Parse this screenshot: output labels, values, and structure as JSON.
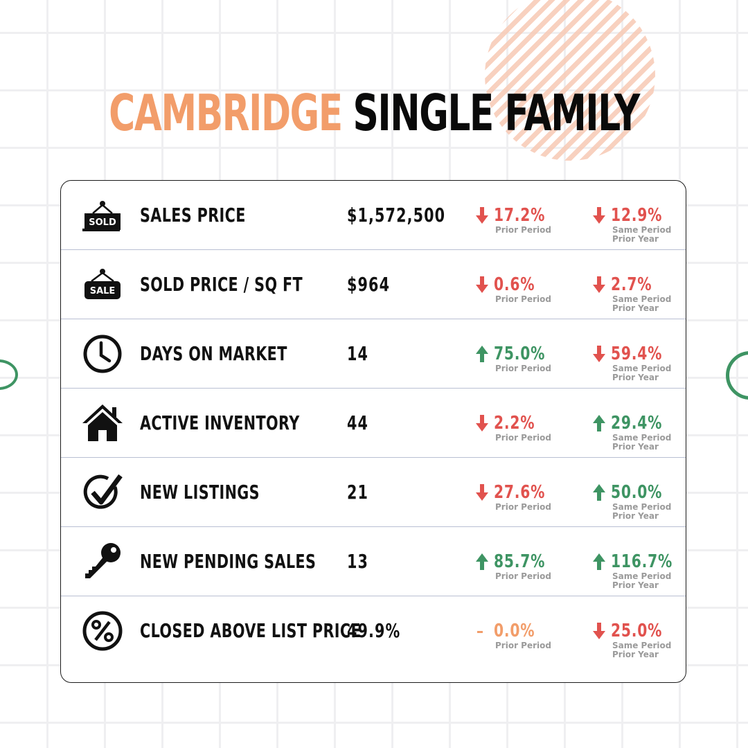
{
  "title": {
    "city": "CAMBRIDGE",
    "type": "SINGLE FAMILY"
  },
  "colors": {
    "accent": "#f29d6a",
    "down": "#e1524e",
    "up": "#3e9463",
    "flat": "#f29d6a"
  },
  "column_labels": {
    "prior_period": "Prior Period",
    "same_period_line1": "Same Period",
    "same_period_line2": "Prior Year"
  },
  "rows": [
    {
      "icon": "sold-sign-icon",
      "label": "SALES PRICE",
      "value": "$1,572,500",
      "prior": {
        "dir": "down",
        "pct": "17.2%"
      },
      "year": {
        "dir": "down",
        "pct": "12.9%"
      }
    },
    {
      "icon": "sale-sign-icon",
      "label": "SOLD PRICE / SQ FT",
      "value": "$964",
      "prior": {
        "dir": "down",
        "pct": "0.6%"
      },
      "year": {
        "dir": "down",
        "pct": "2.7%"
      }
    },
    {
      "icon": "clock-icon",
      "label": "DAYS ON MARKET",
      "value": "14",
      "prior": {
        "dir": "up",
        "pct": "75.0%"
      },
      "year": {
        "dir": "down",
        "pct": "59.4%"
      }
    },
    {
      "icon": "house-icon",
      "label": "ACTIVE INVENTORY",
      "value": "44",
      "prior": {
        "dir": "down",
        "pct": "2.2%"
      },
      "year": {
        "dir": "up",
        "pct": "29.4%"
      }
    },
    {
      "icon": "checkmark-circle-icon",
      "label": "NEW LISTINGS",
      "value": "21",
      "prior": {
        "dir": "down",
        "pct": "27.6%"
      },
      "year": {
        "dir": "up",
        "pct": "50.0%"
      }
    },
    {
      "icon": "key-icon",
      "label": "NEW PENDING SALES",
      "value": "13",
      "prior": {
        "dir": "up",
        "pct": "85.7%"
      },
      "year": {
        "dir": "up",
        "pct": "116.7%"
      }
    },
    {
      "icon": "percent-circle-icon",
      "label": "CLOSED ABOVE LIST PRICE",
      "value": "49.9%",
      "prior": {
        "dir": "flat",
        "pct": "0.0%"
      },
      "year": {
        "dir": "down",
        "pct": "25.0%"
      }
    }
  ]
}
